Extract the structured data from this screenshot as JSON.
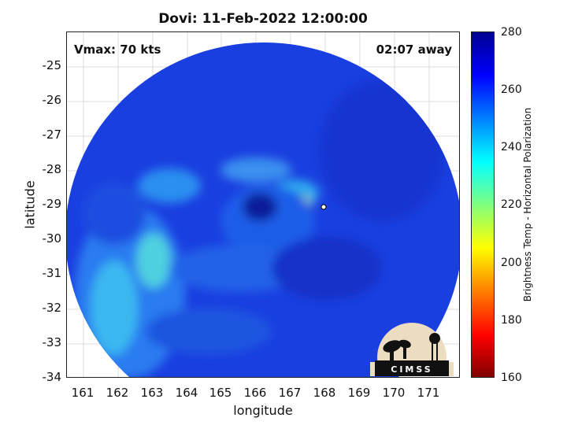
{
  "title": "Dovi: 11-Feb-2022 12:00:00",
  "vmax_label": "Vmax: 70 kts",
  "time_away": "02:07 away",
  "axes": {
    "xlabel": "longitude",
    "ylabel": "latitude",
    "x_ticks": [
      "161",
      "162",
      "163",
      "164",
      "165",
      "166",
      "167",
      "168",
      "169",
      "170",
      "171"
    ],
    "y_ticks": [
      "-25",
      "-26",
      "-27",
      "-28",
      "-29",
      "-30",
      "-31",
      "-32",
      "-33",
      "-34"
    ],
    "xlim": [
      160.5,
      171.9
    ],
    "ylim": [
      -34,
      -24
    ]
  },
  "colorbar": {
    "label": "Brightness Temp - Horizontal Polarization",
    "ticks": [
      "280",
      "260",
      "240",
      "220",
      "200",
      "180",
      "160"
    ],
    "range": [
      160,
      280
    ],
    "colors": [
      "#800000",
      "#ff0000",
      "#ff8000",
      "#ffff00",
      "#80ff80",
      "#00ffff",
      "#0080ff",
      "#0000ff",
      "#00008f"
    ]
  },
  "storm_center": {
    "lon": 168.0,
    "lat": -29.05
  },
  "logo_text": "CIMSS"
}
